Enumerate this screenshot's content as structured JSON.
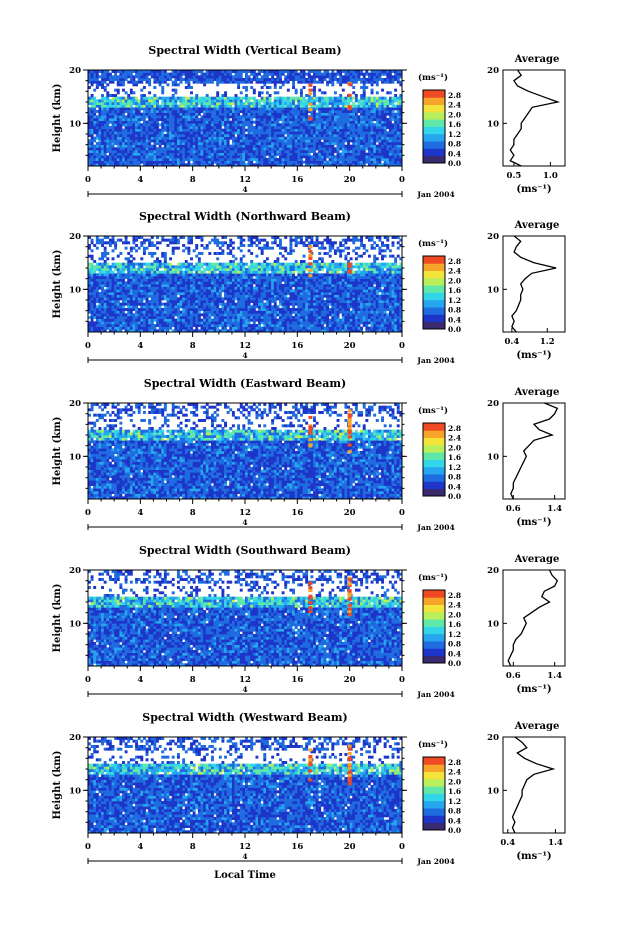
{
  "figure": {
    "x_label": "Local Time",
    "colorbar_unit": "(ms⁻¹)",
    "colorbar_ticks": [
      "0.0",
      "0.4",
      "0.8",
      "1.2",
      "1.6",
      "2.0",
      "2.4",
      "2.8"
    ],
    "date_label": "Jan 2004",
    "day_marker": "4",
    "colors": {
      "scale": [
        "#3a2a6e",
        "#1d35c8",
        "#1f6be0",
        "#25a6ee",
        "#33d6e8",
        "#5fe8a8",
        "#b9ef5a",
        "#f3e33a",
        "#f6a52a",
        "#ef4a24"
      ],
      "background": "#ffffff",
      "profile_line": "#000000"
    }
  },
  "chart_data": [
    {
      "type": "heatmap",
      "title": "Spectral Width (Vertical Beam)",
      "xlabel": "",
      "ylabel": "Height (km)",
      "x_ticks": [
        "0",
        "4",
        "8",
        "12",
        "16",
        "20",
        "0"
      ],
      "y_ticks": [
        "20",
        "10"
      ],
      "xlim": [
        0,
        24
      ],
      "ylim": [
        2,
        20
      ],
      "colorbar": {
        "unit": "(ms⁻¹)",
        "range": [
          0,
          3
        ],
        "ticks": [
          "0.0",
          "0.4",
          "0.8",
          "1.2",
          "1.6",
          "2.0",
          "2.4",
          "2.8"
        ]
      },
      "profile": {
        "title": "Average",
        "xlabel": "(ms⁻¹)",
        "x_ticks": [
          "0.5",
          "1.0"
        ],
        "xlim": [
          0.35,
          1.2
        ],
        "y_ticks": [
          "20",
          "10"
        ],
        "heights": [
          2,
          3,
          4,
          5,
          6,
          7,
          8,
          9,
          10,
          11,
          12,
          13,
          14,
          15,
          16,
          17,
          18,
          19,
          20
        ],
        "values": [
          0.6,
          0.45,
          0.5,
          0.45,
          0.5,
          0.5,
          0.55,
          0.6,
          0.6,
          0.65,
          0.7,
          0.75,
          1.1,
          0.9,
          0.7,
          0.55,
          0.5,
          0.6,
          0.55
        ]
      }
    },
    {
      "type": "heatmap",
      "title": "Spectral Width (Northward Beam)",
      "xlabel": "",
      "ylabel": "Height (km)",
      "x_ticks": [
        "0",
        "4",
        "8",
        "12",
        "16",
        "20",
        "0"
      ],
      "y_ticks": [
        "20",
        "10"
      ],
      "xlim": [
        0,
        24
      ],
      "ylim": [
        2,
        20
      ],
      "colorbar": {
        "unit": "(ms⁻¹)",
        "range": [
          0,
          3
        ],
        "ticks": [
          "0.0",
          "0.4",
          "0.8",
          "1.2",
          "1.6",
          "2.0",
          "2.4",
          "2.8"
        ]
      },
      "profile": {
        "title": "Average",
        "xlabel": "(ms⁻¹)",
        "x_ticks": [
          "0.4",
          "1.2"
        ],
        "xlim": [
          0.2,
          1.6
        ],
        "y_ticks": [
          "20",
          "10"
        ],
        "heights": [
          2,
          3,
          4,
          5,
          6,
          7,
          8,
          9,
          10,
          11,
          12,
          13,
          14,
          15,
          16,
          17,
          18,
          19,
          20
        ],
        "values": [
          0.5,
          0.4,
          0.45,
          0.4,
          0.5,
          0.55,
          0.6,
          0.6,
          0.65,
          0.6,
          0.7,
          0.85,
          1.4,
          0.9,
          0.6,
          0.45,
          0.5,
          0.6,
          0.45
        ]
      }
    },
    {
      "type": "heatmap",
      "title": "Spectral Width (Eastward Beam)",
      "xlabel": "",
      "ylabel": "Height (km)",
      "x_ticks": [
        "0",
        "4",
        "8",
        "12",
        "16",
        "20",
        "0"
      ],
      "y_ticks": [
        "20",
        "10"
      ],
      "xlim": [
        0,
        24
      ],
      "ylim": [
        2,
        20
      ],
      "colorbar": {
        "unit": "(ms⁻¹)",
        "range": [
          0,
          3
        ],
        "ticks": [
          "0.0",
          "0.4",
          "0.8",
          "1.2",
          "1.6",
          "2.0",
          "2.4",
          "2.8"
        ]
      },
      "profile": {
        "title": "Average",
        "xlabel": "(ms⁻¹)",
        "x_ticks": [
          "0.6",
          "1.4"
        ],
        "xlim": [
          0.4,
          1.6
        ],
        "y_ticks": [
          "20",
          "10"
        ],
        "heights": [
          2,
          3,
          4,
          5,
          6,
          7,
          8,
          9,
          10,
          11,
          12,
          13,
          14,
          15,
          16,
          17,
          18,
          19,
          20
        ],
        "values": [
          0.6,
          0.55,
          0.6,
          0.6,
          0.65,
          0.7,
          0.75,
          0.8,
          0.85,
          0.8,
          0.9,
          1.0,
          1.35,
          1.1,
          1.0,
          1.3,
          1.4,
          1.45,
          1.2
        ]
      }
    },
    {
      "type": "heatmap",
      "title": "Spectral Width (Southward Beam)",
      "xlabel": "",
      "ylabel": "Height (km)",
      "x_ticks": [
        "0",
        "4",
        "8",
        "12",
        "16",
        "20",
        "0"
      ],
      "y_ticks": [
        "20",
        "10"
      ],
      "xlim": [
        0,
        24
      ],
      "ylim": [
        2,
        20
      ],
      "colorbar": {
        "unit": "(ms⁻¹)",
        "range": [
          0,
          3
        ],
        "ticks": [
          "0.0",
          "0.4",
          "0.8",
          "1.2",
          "1.6",
          "2.0",
          "2.4",
          "2.8"
        ]
      },
      "profile": {
        "title": "Average",
        "xlabel": "(ms⁻¹)",
        "x_ticks": [
          "0.6",
          "1.4"
        ],
        "xlim": [
          0.4,
          1.6
        ],
        "y_ticks": [
          "20",
          "10"
        ],
        "heights": [
          2,
          3,
          4,
          5,
          6,
          7,
          8,
          9,
          10,
          11,
          12,
          13,
          14,
          15,
          16,
          17,
          18,
          19,
          20
        ],
        "values": [
          0.55,
          0.5,
          0.55,
          0.6,
          0.6,
          0.65,
          0.75,
          0.8,
          0.85,
          0.8,
          0.95,
          1.1,
          1.3,
          1.15,
          1.2,
          1.4,
          1.45,
          1.35,
          1.3
        ]
      }
    },
    {
      "type": "heatmap",
      "title": "Spectral Width (Westward Beam)",
      "xlabel": "Local Time",
      "ylabel": "Height (km)",
      "x_ticks": [
        "0",
        "4",
        "8",
        "12",
        "16",
        "20",
        "0"
      ],
      "y_ticks": [
        "20",
        "10"
      ],
      "xlim": [
        0,
        24
      ],
      "ylim": [
        2,
        20
      ],
      "colorbar": {
        "unit": "(ms⁻¹)",
        "range": [
          0,
          3
        ],
        "ticks": [
          "0.0",
          "0.4",
          "0.8",
          "1.2",
          "1.6",
          "2.0",
          "2.4",
          "2.8"
        ]
      },
      "profile": {
        "title": "Average",
        "xlabel": "(ms⁻¹)",
        "x_ticks": [
          "0.4",
          "1.4"
        ],
        "xlim": [
          0.3,
          1.6
        ],
        "y_ticks": [
          "20",
          "10"
        ],
        "heights": [
          2,
          3,
          4,
          5,
          6,
          7,
          8,
          9,
          10,
          11,
          12,
          13,
          14,
          15,
          16,
          17,
          18,
          19,
          20
        ],
        "values": [
          0.55,
          0.5,
          0.55,
          0.5,
          0.55,
          0.6,
          0.65,
          0.7,
          0.7,
          0.75,
          0.8,
          0.95,
          1.35,
          1.0,
          0.75,
          0.6,
          0.8,
          0.7,
          0.55
        ]
      }
    }
  ]
}
